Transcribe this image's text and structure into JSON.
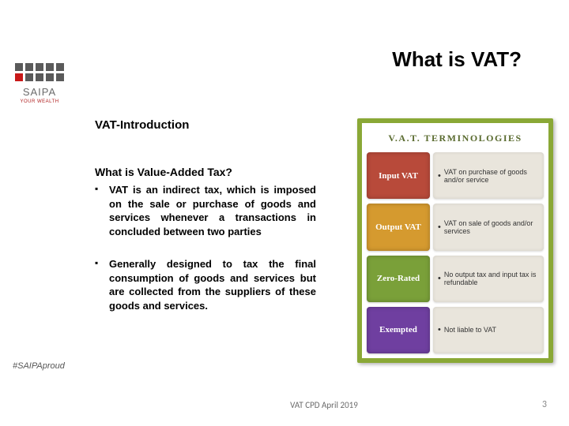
{
  "sidebar": {
    "logo_squares": [
      "#5a5a5a",
      "#5a5a5a",
      "#5a5a5a",
      "#5a5a5a",
      "#5a5a5a",
      "#c81818",
      "#5a5a5a",
      "#5a5a5a",
      "#5a5a5a",
      "#5a5a5a"
    ],
    "logo_text": "SAIPA",
    "logo_tagline": "YOUR WEALTH",
    "hashtag": "#SAIPAproud"
  },
  "title": "What is VAT?",
  "subtitle": "VAT-Introduction",
  "question": "What is Value-Added Tax?",
  "bullets": [
    "VAT is an indirect tax, which is imposed on the sale or purchase of goods and services whenever a transactions in concluded between two parties",
    "Generally designed to tax the final consumption of goods and services but are collected from the suppliers of these goods and services."
  ],
  "infographic": {
    "title": "V.A.T. TERMINOLOGIES",
    "border_color": "#8aa836",
    "desc_bg": "#e9e5dc",
    "rows": [
      {
        "label": "Input VAT",
        "label_color": "#b84a3a",
        "desc": "VAT on purchase of goods and/or service"
      },
      {
        "label": "Output VAT",
        "label_color": "#d59a2f",
        "desc": "VAT on sale of goods and/or services"
      },
      {
        "label": "Zero-Rated",
        "label_color": "#7aa039",
        "desc": "No output tax and input tax is refundable"
      },
      {
        "label": "Exempted",
        "label_color": "#6f3fa0",
        "desc": "Not liable to VAT"
      }
    ]
  },
  "footer": "VAT CPD April 2019",
  "page_number": "3"
}
